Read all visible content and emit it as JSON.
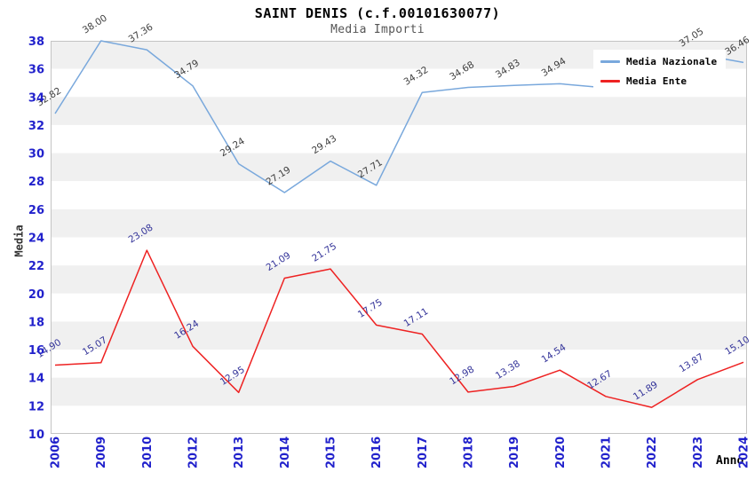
{
  "chart_data": {
    "type": "line",
    "title": "SAINT DENIS (c.f.00101630077)",
    "subtitle": "Media Importi",
    "xlabel": "Anno",
    "ylabel": "Media",
    "ylim": [
      10,
      38
    ],
    "ytick_step": 2,
    "grid": "alternating horizontal bands",
    "legend_position": "top-right",
    "categories": [
      "2006",
      "2009",
      "2010",
      "2012",
      "2013",
      "2014",
      "2015",
      "2016",
      "2017",
      "2018",
      "2019",
      "2020",
      "2021",
      "2022",
      "2023",
      "2024"
    ],
    "series": [
      {
        "name": "Media Nazionale",
        "color": "#79a8dc",
        "label_color": "#3d3d3d",
        "values": [
          32.82,
          38.0,
          37.36,
          34.79,
          29.24,
          27.19,
          29.43,
          27.71,
          34.32,
          34.68,
          34.83,
          34.94,
          34.65,
          35.85,
          37.05,
          36.46
        ],
        "point_labels": [
          "32.82",
          "38.00",
          "37.36",
          "34.79",
          "29.24",
          "27.19",
          "29.43",
          "27.71",
          "34.32",
          "34.68",
          "34.83",
          "34.94",
          null,
          null,
          "37.05",
          "36.46"
        ],
        "hidden_point_indexes": [
          12,
          13
        ]
      },
      {
        "name": "Media Ente",
        "color": "#ee2222",
        "label_color": "#333399",
        "values": [
          14.9,
          15.07,
          23.08,
          16.24,
          12.95,
          21.09,
          21.75,
          17.75,
          17.11,
          12.98,
          13.38,
          14.54,
          12.67,
          11.89,
          13.87,
          15.1
        ],
        "point_labels": [
          "14.90",
          "15.07",
          "23.08",
          "16.24",
          "12.95",
          "21.09",
          "21.75",
          "17.75",
          "17.11",
          "12.98",
          "13.38",
          "14.54",
          "12.67",
          "11.89",
          "13.87",
          "15.10"
        ]
      }
    ],
    "styling": {
      "band_gray": "#f0f0f0",
      "band_white": "#ffffff",
      "plot_border_color": "#c4c4c4",
      "tick_label_color": "#2222cc"
    }
  }
}
